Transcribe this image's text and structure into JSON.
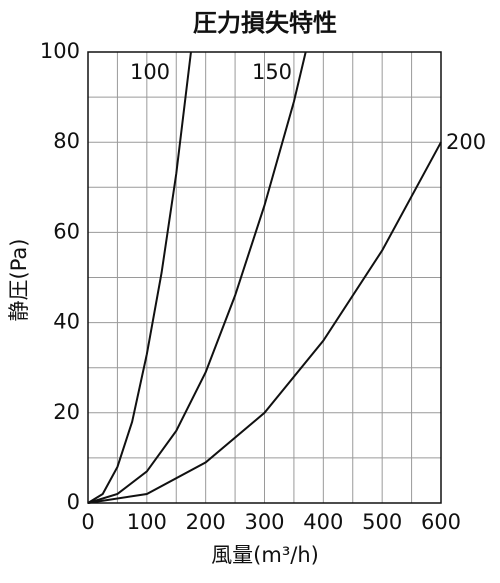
{
  "chart_data": {
    "type": "line",
    "title": "圧力損失特性",
    "x_label": "風量(m³/h)",
    "y_label": "静圧(Pa)",
    "xlim": [
      0,
      600
    ],
    "ylim": [
      0,
      100
    ],
    "xticks": [
      0,
      100,
      200,
      300,
      400,
      500,
      600
    ],
    "yticks": [
      0,
      20,
      40,
      60,
      80,
      100
    ],
    "minor_xticks": [
      50,
      150,
      250,
      350,
      450,
      550
    ],
    "minor_yticks": [
      10,
      30,
      50,
      70,
      90
    ],
    "grid": true,
    "series": [
      {
        "name": "100",
        "color": "#111111",
        "x": [
          0,
          25,
          50,
          75,
          100,
          125,
          150,
          175
        ],
        "values": [
          0,
          2,
          8,
          18,
          33,
          51,
          73,
          100
        ]
      },
      {
        "name": "150",
        "color": "#111111",
        "x": [
          0,
          50,
          100,
          150,
          200,
          250,
          300,
          350,
          370
        ],
        "values": [
          0,
          2,
          7,
          16,
          29,
          46,
          66,
          89,
          100
        ]
      },
      {
        "name": "200",
        "color": "#111111",
        "x": [
          0,
          100,
          200,
          300,
          400,
          500,
          600
        ],
        "values": [
          0,
          2,
          9,
          20,
          36,
          56,
          80
        ]
      }
    ]
  }
}
